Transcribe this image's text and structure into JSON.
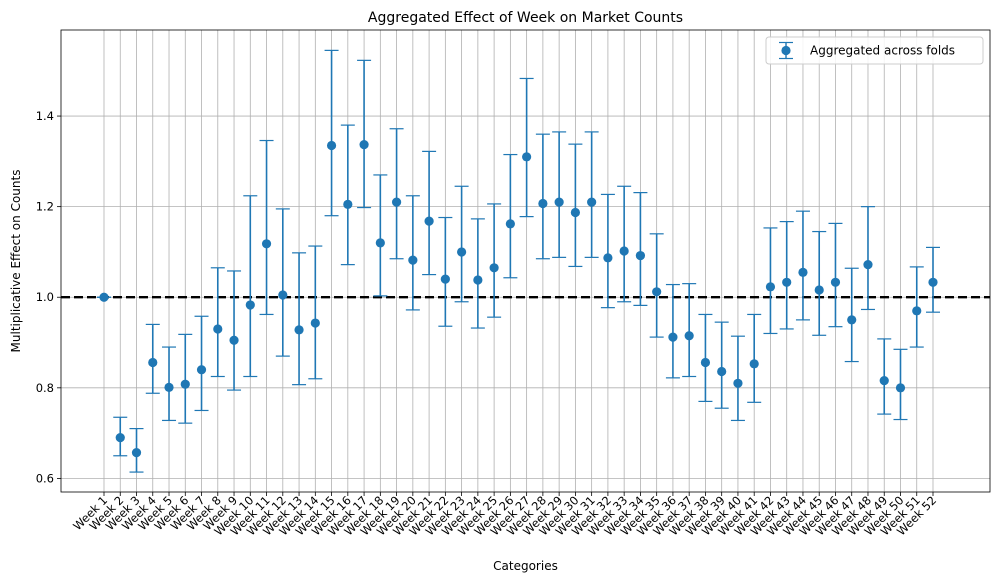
{
  "chart_data": {
    "type": "scatter",
    "title": "Aggregated Effect of Week on Market Counts",
    "xlabel": "Categories",
    "ylabel": "Multiplicative Effect on Counts",
    "ylim": [
      0.57,
      1.59
    ],
    "yticks": [
      "0.6",
      "0.8",
      "1.0",
      "1.2",
      "1.4"
    ],
    "grid": true,
    "legend_position": "top-right",
    "reference_line": 1.0,
    "colors": {
      "series": "#1f77b4",
      "reference": "#000000",
      "grid": "#b0b0b0"
    },
    "categories": [
      "Week 1",
      "Week 2",
      "Week 3",
      "Week 4",
      "Week 5",
      "Week 6",
      "Week 7",
      "Week 8",
      "Week 9",
      "Week 10",
      "Week 11",
      "Week 12",
      "Week 13",
      "Week 14",
      "Week 15",
      "Week 16",
      "Week 17",
      "Week 18",
      "Week 19",
      "Week 20",
      "Week 21",
      "Week 22",
      "Week 23",
      "Week 24",
      "Week 25",
      "Week 26",
      "Week 27",
      "Week 28",
      "Week 29",
      "Week 30",
      "Week 31",
      "Week 32",
      "Week 33",
      "Week 34",
      "Week 35",
      "Week 36",
      "Week 37",
      "Week 38",
      "Week 39",
      "Week 40",
      "Week 41",
      "Week 42",
      "Week 43",
      "Week 44",
      "Week 45",
      "Week 46",
      "Week 47",
      "Week 48",
      "Week 49",
      "Week 50",
      "Week 51",
      "Week 52"
    ],
    "series": [
      {
        "name": "Aggregated across folds",
        "values": [
          1.0,
          0.69,
          0.657,
          0.856,
          0.801,
          0.808,
          0.84,
          0.93,
          0.905,
          0.983,
          1.118,
          1.005,
          0.928,
          0.943,
          1.335,
          1.205,
          1.337,
          1.12,
          1.21,
          1.082,
          1.168,
          1.04,
          1.1,
          1.038,
          1.065,
          1.162,
          1.31,
          1.207,
          1.21,
          1.187,
          1.21,
          1.087,
          1.102,
          1.092,
          1.012,
          0.912,
          0.915,
          0.856,
          0.836,
          0.81,
          0.853,
          1.023,
          1.033,
          1.055,
          1.016,
          1.033,
          0.95,
          1.072,
          0.816,
          0.8,
          0.97,
          1.033
        ],
        "lower": [
          1.0,
          0.65,
          0.614,
          0.788,
          0.728,
          0.722,
          0.75,
          0.825,
          0.795,
          0.825,
          0.962,
          0.87,
          0.807,
          0.82,
          1.18,
          1.072,
          1.198,
          1.003,
          1.085,
          0.972,
          1.05,
          0.936,
          0.99,
          0.932,
          0.956,
          1.043,
          1.178,
          1.085,
          1.088,
          1.068,
          1.088,
          0.977,
          0.99,
          0.982,
          0.912,
          0.822,
          0.825,
          0.77,
          0.755,
          0.728,
          0.768,
          0.92,
          0.93,
          0.95,
          0.916,
          0.935,
          0.858,
          0.973,
          0.742,
          0.73,
          0.89,
          0.967
        ],
        "upper": [
          1.0,
          0.735,
          0.71,
          0.94,
          0.89,
          0.918,
          0.958,
          1.065,
          1.058,
          1.224,
          1.346,
          1.195,
          1.098,
          1.113,
          1.545,
          1.38,
          1.523,
          1.27,
          1.372,
          1.224,
          1.322,
          1.176,
          1.245,
          1.173,
          1.206,
          1.315,
          1.483,
          1.36,
          1.365,
          1.338,
          1.365,
          1.227,
          1.245,
          1.231,
          1.14,
          1.028,
          1.03,
          0.962,
          0.945,
          0.914,
          0.962,
          1.153,
          1.167,
          1.19,
          1.145,
          1.163,
          1.064,
          1.2,
          0.908,
          0.885,
          1.067,
          1.11
        ]
      }
    ]
  }
}
